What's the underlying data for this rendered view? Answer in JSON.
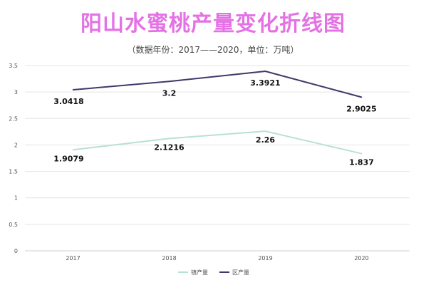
{
  "title": "阳山水蜜桃产量变化折线图",
  "subtitle": "（数据年份：2017——2020，单位：万吨）",
  "chart_data": {
    "type": "line",
    "title": "阳山水蜜桃产量变化折线图",
    "subtitle": "（数据年份：2017——2020，单位：万吨）",
    "categories": [
      "2017",
      "2018",
      "2019",
      "2020"
    ],
    "series": [
      {
        "name": "镇产量",
        "values": [
          1.9079,
          2.1216,
          2.26,
          1.837
        ],
        "labels": [
          "1.9079",
          "2.1216",
          "2.26",
          "1.837"
        ],
        "color": "#b8e0d8"
      },
      {
        "name": "区产量",
        "values": [
          3.0418,
          3.2,
          3.3921,
          2.9025
        ],
        "labels": [
          "3.0418",
          "3.2",
          "3.3921",
          "2.9025"
        ],
        "color": "#3d3a6b"
      }
    ],
    "ylim": [
      0,
      3.5
    ],
    "yticks": [
      "0",
      "0.5",
      "1",
      "1.5",
      "2",
      "2.5",
      "3",
      "3.5"
    ],
    "grid": true,
    "legend": "bottom"
  }
}
